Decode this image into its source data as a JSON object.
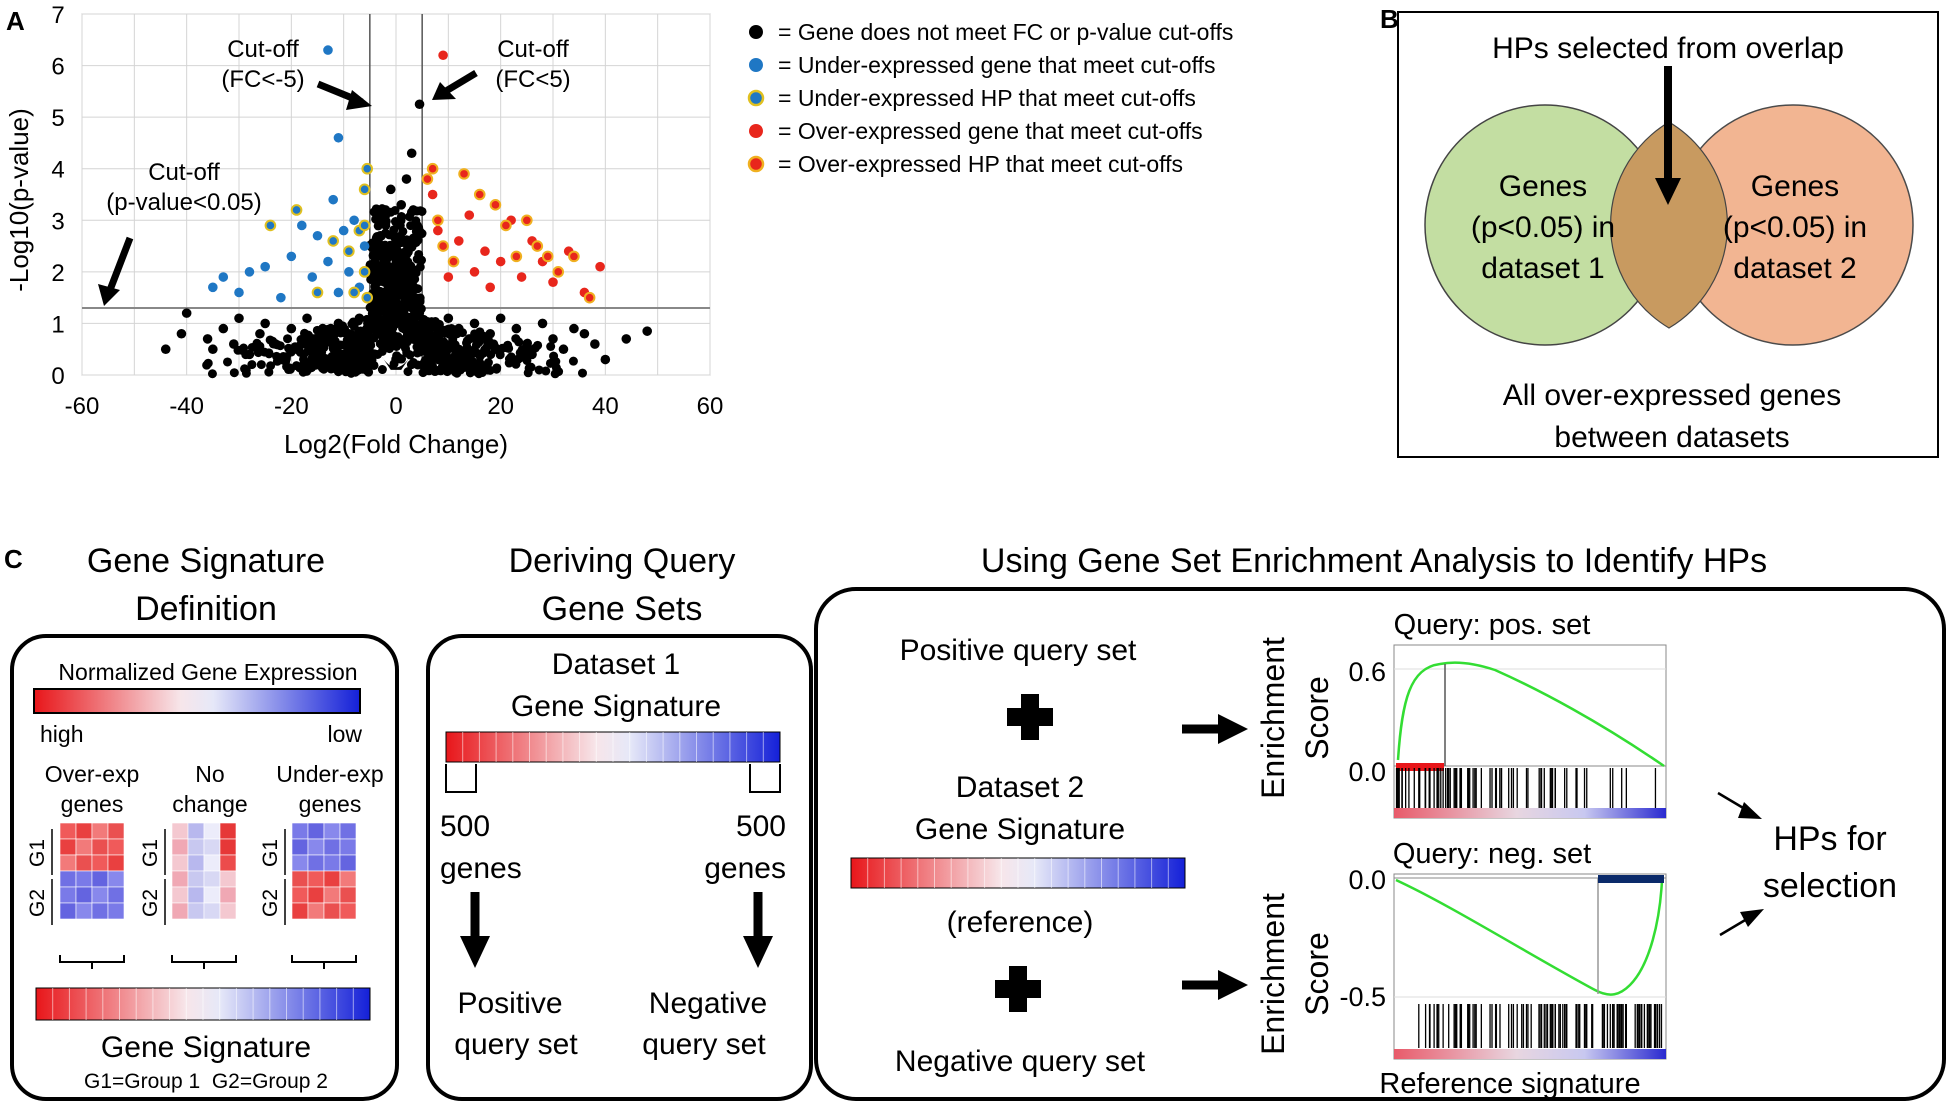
{
  "panel_a": {
    "label": "A",
    "annotations": {
      "cut_left_1": "Cut-off",
      "cut_left_2": "(FC<-5)",
      "cut_right_1": "Cut-off",
      "cut_right_2": "(FC<5)",
      "cut_p_1": "Cut-off",
      "cut_p_2": "(p-value<0.05)"
    },
    "legend": [
      {
        "text": "= Gene does not meet FC or p-value cut-offs",
        "fill": "#000000",
        "stroke": "#000000"
      },
      {
        "text": "= Under-expressed gene that meet cut-offs",
        "fill": "#1f77c4",
        "stroke": "#1f77c4"
      },
      {
        "text": "= Under-expressed HP that meet cut-offs",
        "fill": "#1f77c4",
        "stroke": "#e0c020"
      },
      {
        "text": "= Over-expressed gene that meet cut-offs",
        "fill": "#e8261c",
        "stroke": "#e8261c"
      },
      {
        "text": "= Over-expressed HP that meet cut-offs",
        "fill": "#e8261c",
        "stroke": "#f0b020"
      }
    ]
  },
  "chart_data": {
    "type": "scatter",
    "title": "",
    "xlabel": "Log2(Fold Change)",
    "ylabel": "-Log10(p-value)",
    "xlim": [
      -60,
      60
    ],
    "ylim": [
      0,
      7
    ],
    "xticks": [
      -60,
      -40,
      -20,
      0,
      20,
      40,
      60
    ],
    "yticks": [
      0,
      1,
      2,
      3,
      4,
      5,
      6,
      7
    ],
    "grid": true,
    "cutoffs": {
      "fc_low": -5,
      "fc_high": 5,
      "p_line": 1.3
    },
    "series": [
      {
        "name": "Gene does not meet FC or p-value cut-offs",
        "color": "#000000",
        "points": [
          [
            -44,
            0.5
          ],
          [
            -41,
            0.8
          ],
          [
            -40,
            1.2
          ],
          [
            -36,
            0.7
          ],
          [
            -35,
            0.5
          ],
          [
            -33,
            0.9
          ],
          [
            -31,
            0.6
          ],
          [
            -30,
            1.1
          ],
          [
            -28,
            0.4
          ],
          [
            -26,
            0.8
          ],
          [
            -25,
            1.0
          ],
          [
            -23,
            0.6
          ],
          [
            -22,
            0.3
          ],
          [
            -20,
            0.9
          ],
          [
            -19,
            0.5
          ],
          [
            -17,
            1.1
          ],
          [
            -16,
            0.7
          ],
          [
            -15,
            0.4
          ],
          [
            -14,
            0.9
          ],
          [
            -13,
            0.2
          ],
          [
            -12,
            0.6
          ],
          [
            -11,
            1.0
          ],
          [
            -10,
            0.4
          ],
          [
            -9,
            0.8
          ],
          [
            -8,
            0.3
          ],
          [
            -7,
            1.1
          ],
          [
            -6,
            0.6
          ],
          [
            -5,
            0.2
          ],
          [
            -4,
            1.5
          ],
          [
            -4,
            2.1
          ],
          [
            -3,
            2.7
          ],
          [
            -3,
            0.9
          ],
          [
            -2,
            3.2
          ],
          [
            -2,
            1.8
          ],
          [
            -1,
            3.6
          ],
          [
            -1,
            2.4
          ],
          [
            0,
            1.0
          ],
          [
            1,
            2.2
          ],
          [
            1,
            3.3
          ],
          [
            2,
            2.6
          ],
          [
            2,
            3.8
          ],
          [
            3,
            1.6
          ],
          [
            3,
            4.3
          ],
          [
            4,
            2.9
          ],
          [
            4,
            1.2
          ],
          [
            4.5,
            5.25
          ],
          [
            5,
            0.5
          ],
          [
            6,
            1.0
          ],
          [
            7,
            0.4
          ],
          [
            8,
            0.8
          ],
          [
            9,
            0.3
          ],
          [
            10,
            1.1
          ],
          [
            11,
            0.6
          ],
          [
            12,
            0.9
          ],
          [
            13,
            0.2
          ],
          [
            14,
            0.7
          ],
          [
            15,
            1.0
          ],
          [
            16,
            0.4
          ],
          [
            18,
            0.8
          ],
          [
            19,
            0.5
          ],
          [
            20,
            1.1
          ],
          [
            22,
            0.3
          ],
          [
            23,
            0.9
          ],
          [
            25,
            0.6
          ],
          [
            26,
            0.4
          ],
          [
            28,
            1.0
          ],
          [
            30,
            0.7
          ],
          [
            32,
            0.5
          ],
          [
            34,
            0.9
          ],
          [
            36,
            0.8
          ],
          [
            38,
            0.6
          ],
          [
            40,
            0.3
          ],
          [
            44,
            0.7
          ],
          [
            48,
            0.85
          ]
        ]
      },
      {
        "name": "Under-expressed gene that meet cut-offs",
        "color": "#1f77c4",
        "points": [
          [
            -13,
            6.3
          ],
          [
            -11,
            4.6
          ],
          [
            -35,
            1.7
          ],
          [
            -33,
            1.9
          ],
          [
            -30,
            1.6
          ],
          [
            -28,
            2.0
          ],
          [
            -25,
            2.1
          ],
          [
            -22,
            1.5
          ],
          [
            -20,
            2.3
          ],
          [
            -18,
            2.9
          ],
          [
            -16,
            1.9
          ],
          [
            -15,
            2.7
          ],
          [
            -13,
            2.2
          ],
          [
            -12,
            3.4
          ],
          [
            -11,
            1.6
          ],
          [
            -10,
            2.8
          ],
          [
            -9,
            2.0
          ],
          [
            -8,
            3.0
          ],
          [
            -7,
            1.7
          ],
          [
            -6,
            2.5
          ]
        ]
      },
      {
        "name": "Under-expressed HP that meet cut-offs",
        "color": "#1f77c4",
        "points": [
          [
            -24,
            2.9
          ],
          [
            -19,
            3.2
          ],
          [
            -15,
            1.6
          ],
          [
            -12,
            2.6
          ],
          [
            -9,
            2.4
          ],
          [
            -8,
            1.6
          ],
          [
            -7,
            2.8
          ],
          [
            -6,
            3.6
          ],
          [
            -6,
            2.0
          ],
          [
            -5.5,
            4.0
          ],
          [
            -5.5,
            1.5
          ],
          [
            -6,
            2.9
          ]
        ]
      },
      {
        "name": "Over-expressed gene that meet cut-offs",
        "color": "#e8261c",
        "points": [
          [
            9,
            6.2
          ],
          [
            7,
            3.5
          ],
          [
            8,
            2.8
          ],
          [
            10,
            1.9
          ],
          [
            12,
            2.6
          ],
          [
            14,
            3.1
          ],
          [
            15,
            2.0
          ],
          [
            17,
            2.4
          ],
          [
            18,
            1.7
          ],
          [
            20,
            2.2
          ],
          [
            22,
            3.0
          ],
          [
            24,
            1.9
          ],
          [
            26,
            2.6
          ],
          [
            28,
            2.2
          ],
          [
            30,
            1.8
          ],
          [
            33,
            2.4
          ],
          [
            36,
            1.6
          ],
          [
            39,
            2.1
          ]
        ]
      },
      {
        "name": "Over-expressed HP that meet cut-offs",
        "color": "#e8261c",
        "points": [
          [
            6,
            3.8
          ],
          [
            7,
            4.0
          ],
          [
            8,
            3.0
          ],
          [
            9,
            2.5
          ],
          [
            11,
            2.2
          ],
          [
            13,
            3.9
          ],
          [
            16,
            3.5
          ],
          [
            19,
            3.3
          ],
          [
            21,
            2.9
          ],
          [
            23,
            2.3
          ],
          [
            25,
            3.0
          ],
          [
            27,
            2.5
          ],
          [
            29,
            2.3
          ],
          [
            31,
            2.0
          ],
          [
            34,
            2.3
          ],
          [
            37,
            1.5
          ]
        ]
      }
    ]
  },
  "panel_b": {
    "label": "B",
    "title": "HPs selected from overlap",
    "left_circle": [
      "Genes",
      "(p<0.05) in",
      "dataset 1"
    ],
    "right_circle": [
      "Genes",
      "(p<0.05) in",
      "dataset 2"
    ],
    "footer": [
      "All over-expressed genes",
      "between datasets"
    ]
  },
  "panel_c": {
    "label": "C",
    "box1": {
      "title": [
        "Gene Signature",
        "Definition"
      ],
      "scale_title": "Normalized Gene Expression",
      "scale_high": "high",
      "scale_low": "low",
      "col1": [
        "Over-exp",
        "genes"
      ],
      "col2": [
        "No",
        "change"
      ],
      "col3": [
        "Under-exp",
        "genes"
      ],
      "g1": "G1",
      "g2": "G2",
      "signature_title": "Gene Signature",
      "signature_legend": "G1=Group 1  G2=Group 2"
    },
    "box2": {
      "title": [
        "Deriving Query",
        "Gene Sets"
      ],
      "dataset": "Dataset 1",
      "signature": "Gene Signature",
      "left_count": "500",
      "left_unit": "genes",
      "right_count": "500",
      "right_unit": "genes",
      "pos_set": [
        "Positive",
        "query set"
      ],
      "neg_set": [
        "Negative",
        "query set"
      ]
    },
    "box3": {
      "title": "Using Gene Set Enrichment Analysis to Identify HPs",
      "positive_query": "Positive query set",
      "dataset2": "Dataset 2",
      "signature": "Gene Signature",
      "reference": "(reference)",
      "negative_query": "Negative query set",
      "plot1_title": "Query: pos. set",
      "plot2_title": "Query: neg. set",
      "ylabel_1": "Enrichment",
      "ylabel_2": "Score",
      "plot1_ticks": [
        "0.6",
        "0.0"
      ],
      "plot2_ticks": [
        "0.0",
        "-0.5"
      ],
      "xlabel": "Reference signature",
      "result": [
        "HPs for",
        "selection"
      ]
    }
  }
}
